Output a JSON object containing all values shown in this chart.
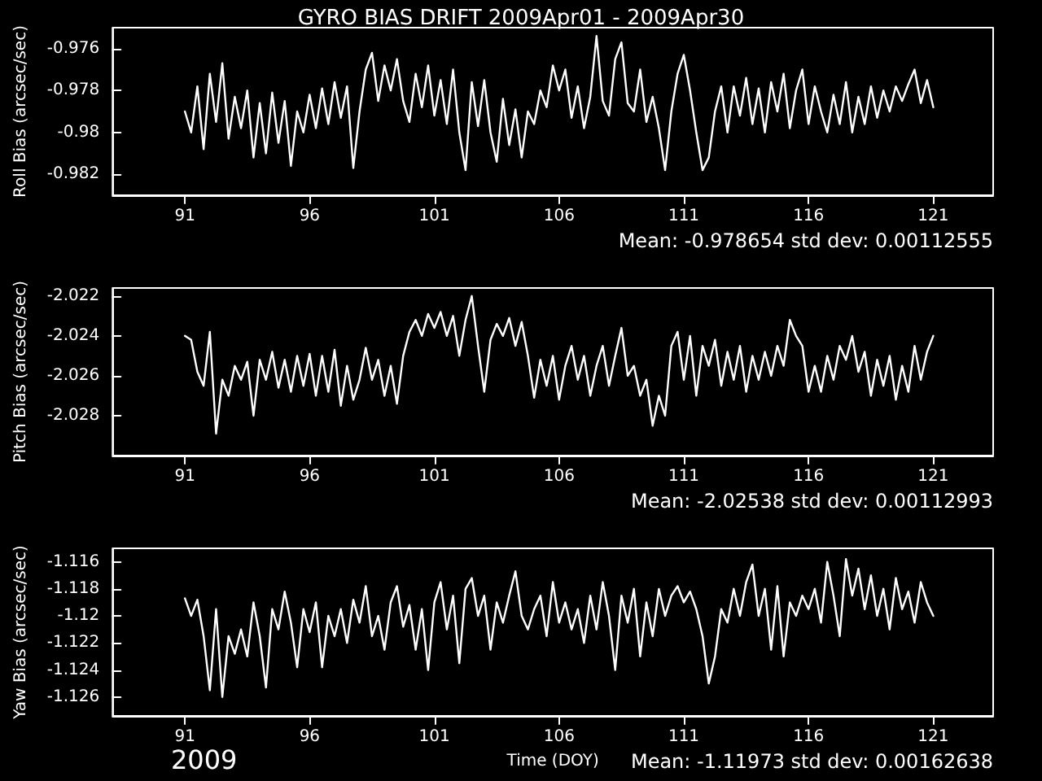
{
  "chart_data": [
    {
      "type": "line",
      "title": "GYRO BIAS DRIFT 2009Apr01 - 2009Apr30",
      "ylabel": "Roll Bias (arcsec/sec)",
      "color": "#ffffff",
      "marker": "none",
      "line_style": "solid",
      "grid": false,
      "xlim": [
        88.1,
        123.4
      ],
      "xticks": [
        91,
        96,
        101,
        106,
        111,
        116,
        121
      ],
      "ylim": [
        -0.983,
        -0.975
      ],
      "yticks": [
        -0.982,
        -0.98,
        -0.978,
        -0.976
      ],
      "annotations": [
        "Mean: -0.978654 std dev: 0.00112555"
      ],
      "x": [
        91,
        91.25,
        91.5,
        91.75,
        92,
        92.25,
        92.5,
        92.75,
        93,
        93.25,
        93.5,
        93.75,
        94,
        94.25,
        94.5,
        94.75,
        95,
        95.25,
        95.5,
        95.75,
        96,
        96.25,
        96.5,
        96.75,
        97,
        97.25,
        97.5,
        97.75,
        98,
        98.25,
        98.5,
        98.75,
        99,
        99.25,
        99.5,
        99.75,
        100,
        100.25,
        100.5,
        100.75,
        101,
        101.25,
        101.5,
        101.75,
        102,
        102.25,
        102.5,
        102.75,
        103,
        103.25,
        103.5,
        103.75,
        104,
        104.25,
        104.5,
        104.75,
        105,
        105.25,
        105.5,
        105.75,
        106,
        106.25,
        106.5,
        106.75,
        107,
        107.25,
        107.5,
        107.75,
        108,
        108.25,
        108.5,
        108.75,
        109,
        109.25,
        109.5,
        109.75,
        110,
        110.25,
        110.5,
        110.75,
        111,
        111.25,
        111.5,
        111.75,
        112,
        112.25,
        112.5,
        112.75,
        113,
        113.25,
        113.5,
        113.75,
        114,
        114.25,
        114.5,
        114.75,
        115,
        115.25,
        115.5,
        115.75,
        116,
        116.25,
        116.5,
        116.75,
        117,
        117.25,
        117.5,
        117.75,
        118,
        118.25,
        118.5,
        118.75,
        119,
        119.25,
        119.5,
        119.75,
        120,
        120.25,
        120.5,
        120.75,
        121
      ],
      "values": [
        -0.979,
        -0.98,
        -0.9778,
        -0.9808,
        -0.9772,
        -0.9795,
        -0.9767,
        -0.9803,
        -0.9783,
        -0.9798,
        -0.978,
        -0.9812,
        -0.9786,
        -0.981,
        -0.9781,
        -0.9805,
        -0.9785,
        -0.9816,
        -0.979,
        -0.98,
        -0.9782,
        -0.9798,
        -0.9779,
        -0.9796,
        -0.9776,
        -0.9793,
        -0.9778,
        -0.9817,
        -0.979,
        -0.977,
        -0.9762,
        -0.9785,
        -0.9768,
        -0.978,
        -0.9765,
        -0.9785,
        -0.9795,
        -0.9772,
        -0.9788,
        -0.9768,
        -0.9792,
        -0.9775,
        -0.9796,
        -0.977,
        -0.98,
        -0.9818,
        -0.9776,
        -0.9797,
        -0.9775,
        -0.98,
        -0.9814,
        -0.9784,
        -0.9806,
        -0.9789,
        -0.9812,
        -0.979,
        -0.9796,
        -0.978,
        -0.9788,
        -0.9768,
        -0.978,
        -0.977,
        -0.9793,
        -0.9778,
        -0.9798,
        -0.9783,
        -0.9754,
        -0.9785,
        -0.9792,
        -0.9765,
        -0.9757,
        -0.9786,
        -0.979,
        -0.977,
        -0.9795,
        -0.9783,
        -0.9798,
        -0.9818,
        -0.979,
        -0.9772,
        -0.9763,
        -0.978,
        -0.98,
        -0.9818,
        -0.9812,
        -0.979,
        -0.9778,
        -0.98,
        -0.9778,
        -0.9792,
        -0.9774,
        -0.9796,
        -0.9779,
        -0.98,
        -0.9776,
        -0.979,
        -0.9772,
        -0.9798,
        -0.978,
        -0.977,
        -0.9796,
        -0.9778,
        -0.979,
        -0.98,
        -0.9782,
        -0.9796,
        -0.9776,
        -0.98,
        -0.9783,
        -0.9796,
        -0.9778,
        -0.9793,
        -0.978,
        -0.979,
        -0.9778,
        -0.9785,
        -0.9777,
        -0.977,
        -0.9786,
        -0.9775,
        -0.9788
      ]
    },
    {
      "type": "line",
      "ylabel": "Pitch Bias (arcsec/sec)",
      "color": "#ffffff",
      "marker": "none",
      "line_style": "solid",
      "grid": false,
      "xlim": [
        88.1,
        123.4
      ],
      "xticks": [
        91,
        96,
        101,
        106,
        111,
        116,
        121
      ],
      "ylim": [
        -2.03,
        -2.0216
      ],
      "yticks": [
        -2.028,
        -2.026,
        -2.024,
        -2.022
      ],
      "annotations": [
        "Mean: -2.02538 std dev: 0.00112993"
      ],
      "x": [
        91,
        91.25,
        91.5,
        91.75,
        92,
        92.25,
        92.5,
        92.75,
        93,
        93.25,
        93.5,
        93.75,
        94,
        94.25,
        94.5,
        94.75,
        95,
        95.25,
        95.5,
        95.75,
        96,
        96.25,
        96.5,
        96.75,
        97,
        97.25,
        97.5,
        97.75,
        98,
        98.25,
        98.5,
        98.75,
        99,
        99.25,
        99.5,
        99.75,
        100,
        100.25,
        100.5,
        100.75,
        101,
        101.25,
        101.5,
        101.75,
        102,
        102.25,
        102.5,
        102.75,
        103,
        103.25,
        103.5,
        103.75,
        104,
        104.25,
        104.5,
        104.75,
        105,
        105.25,
        105.5,
        105.75,
        106,
        106.25,
        106.5,
        106.75,
        107,
        107.25,
        107.5,
        107.75,
        108,
        108.25,
        108.5,
        108.75,
        109,
        109.25,
        109.5,
        109.75,
        110,
        110.25,
        110.5,
        110.75,
        111,
        111.25,
        111.5,
        111.75,
        112,
        112.25,
        112.5,
        112.75,
        113,
        113.25,
        113.5,
        113.75,
        114,
        114.25,
        114.5,
        114.75,
        115,
        115.25,
        115.5,
        115.75,
        116,
        116.25,
        116.5,
        116.75,
        117,
        117.25,
        117.5,
        117.75,
        118,
        118.25,
        118.5,
        118.75,
        119,
        119.25,
        119.5,
        119.75,
        120,
        120.25,
        120.5,
        120.75,
        121
      ],
      "values": [
        -2.024,
        -2.0242,
        -2.0258,
        -2.0265,
        -2.0238,
        -2.0289,
        -2.0262,
        -2.027,
        -2.0255,
        -2.0262,
        -2.0253,
        -2.028,
        -2.0252,
        -2.0262,
        -2.0248,
        -2.0266,
        -2.0252,
        -2.0268,
        -2.025,
        -2.0265,
        -2.0249,
        -2.027,
        -2.025,
        -2.0268,
        -2.0247,
        -2.0275,
        -2.0255,
        -2.0272,
        -2.0262,
        -2.0246,
        -2.0262,
        -2.0252,
        -2.027,
        -2.0255,
        -2.0274,
        -2.025,
        -2.0238,
        -2.0232,
        -2.024,
        -2.0229,
        -2.0236,
        -2.0228,
        -2.024,
        -2.023,
        -2.025,
        -2.0232,
        -2.022,
        -2.0245,
        -2.0268,
        -2.0242,
        -2.0234,
        -2.024,
        -2.0231,
        -2.0245,
        -2.0233,
        -2.025,
        -2.0271,
        -2.0252,
        -2.0265,
        -2.025,
        -2.0272,
        -2.0255,
        -2.0245,
        -2.0262,
        -2.025,
        -2.027,
        -2.0255,
        -2.0245,
        -2.0265,
        -2.025,
        -2.0236,
        -2.026,
        -2.0255,
        -2.027,
        -2.0262,
        -2.0285,
        -2.027,
        -2.028,
        -2.0245,
        -2.0238,
        -2.0262,
        -2.024,
        -2.027,
        -2.0245,
        -2.0255,
        -2.0242,
        -2.0265,
        -2.0248,
        -2.0262,
        -2.0245,
        -2.0268,
        -2.025,
        -2.0262,
        -2.0248,
        -2.026,
        -2.0245,
        -2.0255,
        -2.0232,
        -2.024,
        -2.0245,
        -2.0268,
        -2.0255,
        -2.0268,
        -2.025,
        -2.0262,
        -2.0245,
        -2.0252,
        -2.024,
        -2.0258,
        -2.0248,
        -2.027,
        -2.0252,
        -2.0265,
        -2.025,
        -2.0272,
        -2.0255,
        -2.0268,
        -2.0245,
        -2.0262,
        -2.0248,
        -2.024
      ]
    },
    {
      "type": "line",
      "xlabel": "Time (DOY)",
      "ylabel": "Yaw Bias (arcsec/sec)",
      "color": "#ffffff",
      "marker": "none",
      "line_style": "solid",
      "grid": false,
      "xlim": [
        88.1,
        123.4
      ],
      "xticks": [
        91,
        96,
        101,
        106,
        111,
        116,
        121
      ],
      "ylim": [
        -1.1274,
        -1.115
      ],
      "yticks": [
        -1.126,
        -1.124,
        -1.122,
        -1.12,
        -1.118,
        -1.116
      ],
      "annotations": [
        "Mean: -1.11973 std dev: 0.00162638",
        "2009"
      ],
      "x": [
        91,
        91.25,
        91.5,
        91.75,
        92,
        92.25,
        92.5,
        92.75,
        93,
        93.25,
        93.5,
        93.75,
        94,
        94.25,
        94.5,
        94.75,
        95,
        95.25,
        95.5,
        95.75,
        96,
        96.25,
        96.5,
        96.75,
        97,
        97.25,
        97.5,
        97.75,
        98,
        98.25,
        98.5,
        98.75,
        99,
        99.25,
        99.5,
        99.75,
        100,
        100.25,
        100.5,
        100.75,
        101,
        101.25,
        101.5,
        101.75,
        102,
        102.25,
        102.5,
        102.75,
        103,
        103.25,
        103.5,
        103.75,
        104,
        104.25,
        104.5,
        104.75,
        105,
        105.25,
        105.5,
        105.75,
        106,
        106.25,
        106.5,
        106.75,
        107,
        107.25,
        107.5,
        107.75,
        108,
        108.25,
        108.5,
        108.75,
        109,
        109.25,
        109.5,
        109.75,
        110,
        110.25,
        110.5,
        110.75,
        111,
        111.25,
        111.5,
        111.75,
        112,
        112.25,
        112.5,
        112.75,
        113,
        113.25,
        113.5,
        113.75,
        114,
        114.25,
        114.5,
        114.75,
        115,
        115.25,
        115.5,
        115.75,
        116,
        116.25,
        116.5,
        116.75,
        117,
        117.25,
        117.5,
        117.75,
        118,
        118.25,
        118.5,
        118.75,
        119,
        119.25,
        119.5,
        119.75,
        120,
        120.25,
        120.5,
        120.75,
        121
      ],
      "values": [
        -1.1187,
        -1.12,
        -1.1188,
        -1.1215,
        -1.1255,
        -1.1195,
        -1.126,
        -1.1215,
        -1.1228,
        -1.121,
        -1.123,
        -1.119,
        -1.1215,
        -1.1253,
        -1.1195,
        -1.121,
        -1.1182,
        -1.1205,
        -1.1238,
        -1.1195,
        -1.1212,
        -1.119,
        -1.1238,
        -1.12,
        -1.1215,
        -1.1195,
        -1.122,
        -1.1188,
        -1.1205,
        -1.1178,
        -1.1215,
        -1.12,
        -1.1225,
        -1.119,
        -1.1178,
        -1.1208,
        -1.1192,
        -1.1225,
        -1.1195,
        -1.124,
        -1.119,
        -1.1175,
        -1.121,
        -1.1185,
        -1.1235,
        -1.118,
        -1.1172,
        -1.12,
        -1.1185,
        -1.1225,
        -1.119,
        -1.1205,
        -1.1185,
        -1.1167,
        -1.12,
        -1.121,
        -1.1195,
        -1.1185,
        -1.1215,
        -1.1175,
        -1.1205,
        -1.119,
        -1.121,
        -1.1195,
        -1.122,
        -1.1185,
        -1.121,
        -1.1175,
        -1.12,
        -1.124,
        -1.1185,
        -1.1205,
        -1.118,
        -1.123,
        -1.119,
        -1.1215,
        -1.118,
        -1.12,
        -1.1185,
        -1.1178,
        -1.119,
        -1.1182,
        -1.1195,
        -1.1215,
        -1.125,
        -1.123,
        -1.1195,
        -1.1205,
        -1.118,
        -1.12,
        -1.1175,
        -1.1162,
        -1.12,
        -1.118,
        -1.1225,
        -1.1178,
        -1.123,
        -1.119,
        -1.12,
        -1.1185,
        -1.1195,
        -1.118,
        -1.1205,
        -1.116,
        -1.1185,
        -1.1215,
        -1.1158,
        -1.1185,
        -1.1165,
        -1.1195,
        -1.117,
        -1.12,
        -1.118,
        -1.121,
        -1.1172,
        -1.1195,
        -1.1182,
        -1.1205,
        -1.1175,
        -1.119,
        -1.12
      ]
    }
  ]
}
